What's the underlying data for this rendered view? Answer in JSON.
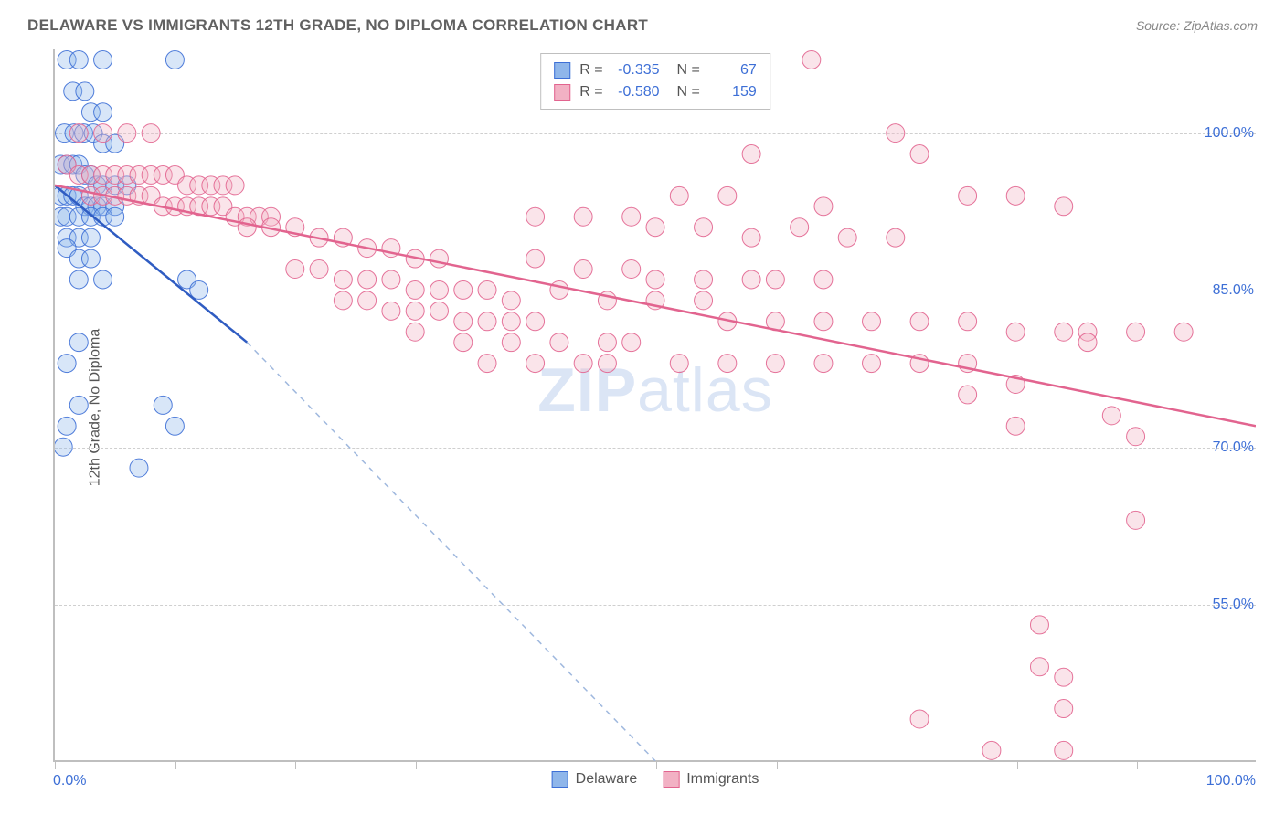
{
  "header": {
    "title": "DELAWARE VS IMMIGRANTS 12TH GRADE, NO DIPLOMA CORRELATION CHART",
    "source": "Source: ZipAtlas.com"
  },
  "ylabel": "12th Grade, No Diploma",
  "watermark": {
    "bold": "ZIP",
    "rest": "atlas"
  },
  "chart": {
    "type": "scatter",
    "background_color": "#ffffff",
    "grid_color": "#cfcfcf",
    "axis_color": "#bfbfbf",
    "tick_label_color": "#3d6fd6",
    "xlim": [
      0,
      100
    ],
    "ylim": [
      40,
      108
    ],
    "xticks": [
      0,
      10,
      20,
      30,
      40,
      50,
      60,
      70,
      80,
      90,
      100
    ],
    "xticks_labeled": {
      "0": "0.0%",
      "100": "100.0%"
    },
    "yticks": [
      55,
      70,
      85,
      100
    ],
    "ytick_labels": [
      "55.0%",
      "70.0%",
      "85.0%",
      "100.0%"
    ],
    "marker_radius": 10,
    "marker_opacity": 0.35,
    "marker_stroke_opacity": 0.9,
    "series": [
      {
        "name": "Delaware",
        "color_fill": "#8fb6ea",
        "color_stroke": "#3d6fd6",
        "R": "-0.335",
        "N": "67",
        "trend": {
          "x1": 0,
          "y1": 95,
          "x2": 16,
          "y2": 80,
          "dash_x2": 50,
          "dash_y2": 40,
          "solid_color": "#2f5cc2",
          "dash_color": "#9fb8de"
        },
        "points": [
          [
            1,
            107
          ],
          [
            2,
            107
          ],
          [
            4,
            107
          ],
          [
            10,
            107
          ],
          [
            1.5,
            104
          ],
          [
            2.5,
            104
          ],
          [
            3,
            102
          ],
          [
            4,
            102
          ],
          [
            0.8,
            100
          ],
          [
            1.6,
            100
          ],
          [
            2.4,
            100
          ],
          [
            3.2,
            100
          ],
          [
            4,
            99
          ],
          [
            5,
            99
          ],
          [
            0.5,
            97
          ],
          [
            1,
            97
          ],
          [
            1.5,
            97
          ],
          [
            2,
            97
          ],
          [
            2.5,
            96
          ],
          [
            3,
            96
          ],
          [
            3.5,
            95
          ],
          [
            4,
            95
          ],
          [
            5,
            95
          ],
          [
            6,
            95
          ],
          [
            0.5,
            94
          ],
          [
            1,
            94
          ],
          [
            1.5,
            94
          ],
          [
            2,
            94
          ],
          [
            2.5,
            93
          ],
          [
            3,
            93
          ],
          [
            3.5,
            93
          ],
          [
            4,
            93
          ],
          [
            5,
            93
          ],
          [
            0.5,
            92
          ],
          [
            1,
            92
          ],
          [
            2,
            92
          ],
          [
            3,
            92
          ],
          [
            4,
            92
          ],
          [
            5,
            92
          ],
          [
            1,
            90
          ],
          [
            2,
            90
          ],
          [
            3,
            90
          ],
          [
            1,
            89
          ],
          [
            2,
            88
          ],
          [
            3,
            88
          ],
          [
            2,
            86
          ],
          [
            4,
            86
          ],
          [
            11,
            86
          ],
          [
            12,
            85
          ],
          [
            2,
            80
          ],
          [
            1,
            78
          ],
          [
            2,
            74
          ],
          [
            9,
            74
          ],
          [
            1,
            72
          ],
          [
            10,
            72
          ],
          [
            0.7,
            70
          ],
          [
            7,
            68
          ]
        ]
      },
      {
        "name": "Immigrants",
        "color_fill": "#f2b1c4",
        "color_stroke": "#e2648f",
        "R": "-0.580",
        "N": "159",
        "trend": {
          "x1": 0,
          "y1": 95,
          "x2": 100,
          "y2": 72,
          "solid_color": "#e2648f"
        },
        "points": [
          [
            63,
            107
          ],
          [
            2,
            100
          ],
          [
            4,
            100
          ],
          [
            6,
            100
          ],
          [
            8,
            100
          ],
          [
            70,
            100
          ],
          [
            58,
            98
          ],
          [
            72,
            98
          ],
          [
            1,
            97
          ],
          [
            2,
            96
          ],
          [
            3,
            96
          ],
          [
            4,
            96
          ],
          [
            5,
            96
          ],
          [
            6,
            96
          ],
          [
            7,
            96
          ],
          [
            8,
            96
          ],
          [
            9,
            96
          ],
          [
            10,
            96
          ],
          [
            11,
            95
          ],
          [
            12,
            95
          ],
          [
            13,
            95
          ],
          [
            14,
            95
          ],
          [
            15,
            95
          ],
          [
            3,
            94
          ],
          [
            4,
            94
          ],
          [
            5,
            94
          ],
          [
            6,
            94
          ],
          [
            7,
            94
          ],
          [
            8,
            94
          ],
          [
            9,
            93
          ],
          [
            10,
            93
          ],
          [
            11,
            93
          ],
          [
            12,
            93
          ],
          [
            13,
            93
          ],
          [
            14,
            93
          ],
          [
            15,
            92
          ],
          [
            16,
            92
          ],
          [
            17,
            92
          ],
          [
            18,
            92
          ],
          [
            52,
            94
          ],
          [
            56,
            94
          ],
          [
            64,
            93
          ],
          [
            76,
            94
          ],
          [
            80,
            94
          ],
          [
            84,
            93
          ],
          [
            16,
            91
          ],
          [
            18,
            91
          ],
          [
            20,
            91
          ],
          [
            22,
            90
          ],
          [
            24,
            90
          ],
          [
            26,
            89
          ],
          [
            28,
            89
          ],
          [
            30,
            88
          ],
          [
            32,
            88
          ],
          [
            40,
            92
          ],
          [
            44,
            92
          ],
          [
            48,
            92
          ],
          [
            50,
            91
          ],
          [
            54,
            91
          ],
          [
            58,
            90
          ],
          [
            62,
            91
          ],
          [
            66,
            90
          ],
          [
            70,
            90
          ],
          [
            20,
            87
          ],
          [
            22,
            87
          ],
          [
            24,
            86
          ],
          [
            26,
            86
          ],
          [
            28,
            86
          ],
          [
            30,
            85
          ],
          [
            32,
            85
          ],
          [
            34,
            85
          ],
          [
            36,
            85
          ],
          [
            38,
            84
          ],
          [
            40,
            88
          ],
          [
            44,
            87
          ],
          [
            48,
            87
          ],
          [
            50,
            86
          ],
          [
            54,
            86
          ],
          [
            58,
            86
          ],
          [
            60,
            86
          ],
          [
            64,
            86
          ],
          [
            24,
            84
          ],
          [
            26,
            84
          ],
          [
            28,
            83
          ],
          [
            30,
            83
          ],
          [
            32,
            83
          ],
          [
            34,
            82
          ],
          [
            36,
            82
          ],
          [
            38,
            82
          ],
          [
            40,
            82
          ],
          [
            42,
            85
          ],
          [
            46,
            84
          ],
          [
            50,
            84
          ],
          [
            54,
            84
          ],
          [
            30,
            81
          ],
          [
            34,
            80
          ],
          [
            38,
            80
          ],
          [
            42,
            80
          ],
          [
            46,
            80
          ],
          [
            48,
            80
          ],
          [
            56,
            82
          ],
          [
            60,
            82
          ],
          [
            64,
            82
          ],
          [
            68,
            82
          ],
          [
            72,
            82
          ],
          [
            76,
            82
          ],
          [
            80,
            81
          ],
          [
            84,
            81
          ],
          [
            86,
            81
          ],
          [
            90,
            81
          ],
          [
            94,
            81
          ],
          [
            86,
            80
          ],
          [
            36,
            78
          ],
          [
            40,
            78
          ],
          [
            44,
            78
          ],
          [
            46,
            78
          ],
          [
            52,
            78
          ],
          [
            56,
            78
          ],
          [
            60,
            78
          ],
          [
            64,
            78
          ],
          [
            68,
            78
          ],
          [
            72,
            78
          ],
          [
            76,
            78
          ],
          [
            76,
            75
          ],
          [
            80,
            76
          ],
          [
            88,
            73
          ],
          [
            80,
            72
          ],
          [
            90,
            71
          ],
          [
            90,
            63
          ],
          [
            82,
            53
          ],
          [
            82,
            49
          ],
          [
            84,
            48
          ],
          [
            84,
            45
          ],
          [
            72,
            44
          ],
          [
            78,
            41
          ],
          [
            84,
            41
          ]
        ]
      }
    ],
    "bottom_legend": [
      {
        "label": "Delaware",
        "fill": "#8fb6ea",
        "stroke": "#3d6fd6"
      },
      {
        "label": "Immigrants",
        "fill": "#f2b1c4",
        "stroke": "#e2648f"
      }
    ]
  }
}
